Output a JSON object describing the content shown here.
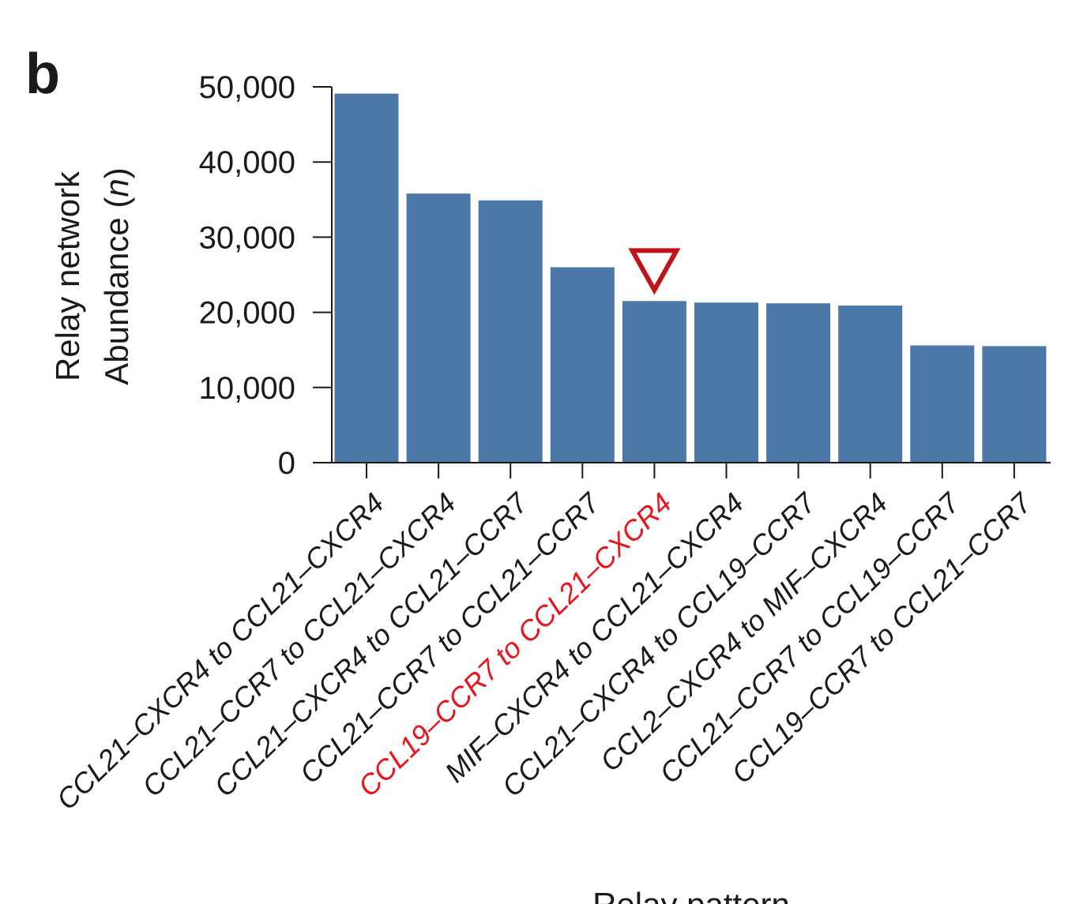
{
  "panel_label": "b",
  "chart_data": {
    "type": "bar",
    "xlabel": "Relay pattern",
    "ylabel_line1": "Relay network",
    "ylabel_line2_prefix": "Abundance (",
    "ylabel_line2_var": "n",
    "ylabel_line2_suffix": ")",
    "ylim": [
      0,
      50000
    ],
    "yticks": [
      {
        "value": 0,
        "label": "0"
      },
      {
        "value": 10000,
        "label": "10,000"
      },
      {
        "value": 20000,
        "label": "20,000"
      },
      {
        "value": 30000,
        "label": "30,000"
      },
      {
        "value": 40000,
        "label": "40,000"
      },
      {
        "value": 50000,
        "label": "50,000"
      }
    ],
    "categories": [
      "CCL21–CXCR4 to CCL21–CXCR4",
      "CCL21–CCR7 to CCL21–CXCR4",
      "CCL21–CXCR4 to CCL21–CCR7",
      "CCL21–CCR7 to CCL21–CCR7",
      "CCL19–CCR7 to CCL21–CXCR4",
      "MIF–CXCR4 to CCL21–CXCR4",
      "CCL21–CXCR4 to CCL19–CCR7",
      "CCL2–CXCR4 to MIF–CXCR4",
      "CCL21–CCR7 to CCL19–CCR7",
      "CCL19–CCR7 to CCL21–CCR7"
    ],
    "values": [
      49100,
      35800,
      34900,
      26000,
      21500,
      21300,
      21200,
      20900,
      15600,
      15500
    ],
    "highlight_index": 4,
    "highlight_marker": "down-triangle",
    "bar_color": "#4c78a8",
    "highlight_color": "#e8141b",
    "marker_color": "#c0141b",
    "grid": false
  }
}
